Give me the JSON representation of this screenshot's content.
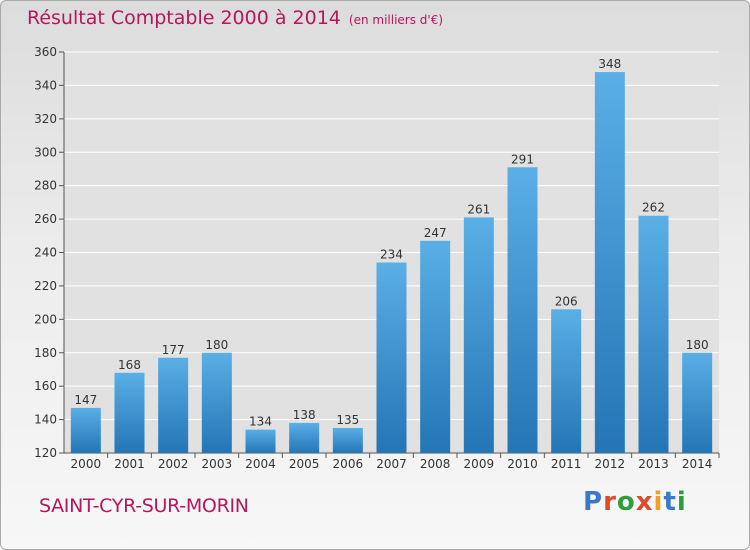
{
  "header": {
    "title": "Résultat Comptable 2000 à 2014",
    "unit": "(en milliers d'€)"
  },
  "commune": "SAINT-CYR-SUR-MORIN",
  "logo": {
    "text": "Proxiti",
    "letter_colors": [
      "#3a78c8",
      "#e04a2a",
      "#2e9e3a",
      "#e04a2a",
      "#f0a020",
      "#3a78c8",
      "#2e9e3a"
    ]
  },
  "colors": {
    "bar_top": "#5aafe6",
    "bar_bottom": "#2475b5",
    "title": "#b5175e",
    "plot_bg": "#e1e1e1"
  },
  "chart_data": {
    "type": "bar",
    "categories": [
      "2000",
      "2001",
      "2002",
      "2003",
      "2004",
      "2005",
      "2006",
      "2007",
      "2008",
      "2009",
      "2010",
      "2011",
      "2012",
      "2013",
      "2014"
    ],
    "values": [
      147,
      168,
      177,
      180,
      134,
      138,
      135,
      234,
      247,
      261,
      291,
      206,
      348,
      262,
      180
    ],
    "title": "Résultat Comptable 2000 à 2014",
    "ylim": [
      120,
      360
    ],
    "yticks": [
      120,
      140,
      160,
      180,
      200,
      220,
      240,
      260,
      280,
      300,
      320,
      340,
      360
    ],
    "grid": true,
    "data_labels": true
  }
}
